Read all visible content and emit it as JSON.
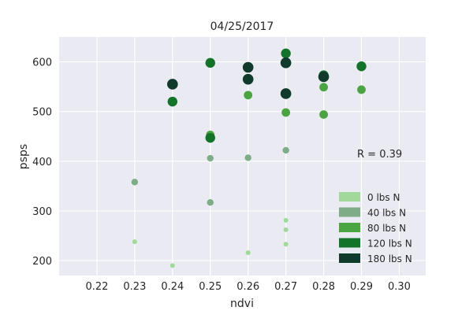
{
  "chart_data": {
    "type": "scatter",
    "title": "04/25/2017",
    "xlabel": "ndvi",
    "ylabel": "psps",
    "xlim": [
      0.21,
      0.307
    ],
    "ylim": [
      170,
      650
    ],
    "xticks": [
      0.22,
      0.23,
      0.24,
      0.25,
      0.26,
      0.27,
      0.28,
      0.29,
      0.3
    ],
    "xtick_labels": [
      "0.22",
      "0.23",
      "0.24",
      "0.25",
      "0.26",
      "0.27",
      "0.28",
      "0.29",
      "0.30"
    ],
    "yticks": [
      200,
      300,
      400,
      500,
      600
    ],
    "ytick_labels": [
      "200",
      "300",
      "400",
      "500",
      "600"
    ],
    "grid": true,
    "background": "#eaeaf2",
    "legend_position": "lower-right",
    "annotation": "R = 0.39",
    "series": [
      {
        "name": "0 lbs N",
        "color": "#a1d99b",
        "points": [
          [
            0.23,
            238
          ],
          [
            0.24,
            190
          ],
          [
            0.26,
            216
          ],
          [
            0.27,
            281
          ],
          [
            0.27,
            262
          ],
          [
            0.27,
            233
          ]
        ]
      },
      {
        "name": "40 lbs N",
        "color": "#7dac86",
        "points": [
          [
            0.23,
            358
          ],
          [
            0.25,
            406
          ],
          [
            0.25,
            317
          ],
          [
            0.26,
            407
          ],
          [
            0.27,
            422
          ]
        ]
      },
      {
        "name": "80 lbs N",
        "color": "#4aa441",
        "points": [
          [
            0.25,
            453
          ],
          [
            0.26,
            533
          ],
          [
            0.27,
            498
          ],
          [
            0.28,
            549
          ],
          [
            0.28,
            494
          ],
          [
            0.29,
            544
          ]
        ]
      },
      {
        "name": "120 lbs N",
        "color": "#137329",
        "points": [
          [
            0.24,
            520
          ],
          [
            0.25,
            598
          ],
          [
            0.25,
            447
          ],
          [
            0.27,
            617
          ],
          [
            0.28,
            573
          ],
          [
            0.29,
            591
          ]
        ]
      },
      {
        "name": "180 lbs N",
        "color": "#0f3a2c",
        "points": [
          [
            0.24,
            555
          ],
          [
            0.26,
            589
          ],
          [
            0.26,
            565
          ],
          [
            0.27,
            598
          ],
          [
            0.27,
            536
          ],
          [
            0.28,
            570
          ]
        ]
      }
    ]
  }
}
